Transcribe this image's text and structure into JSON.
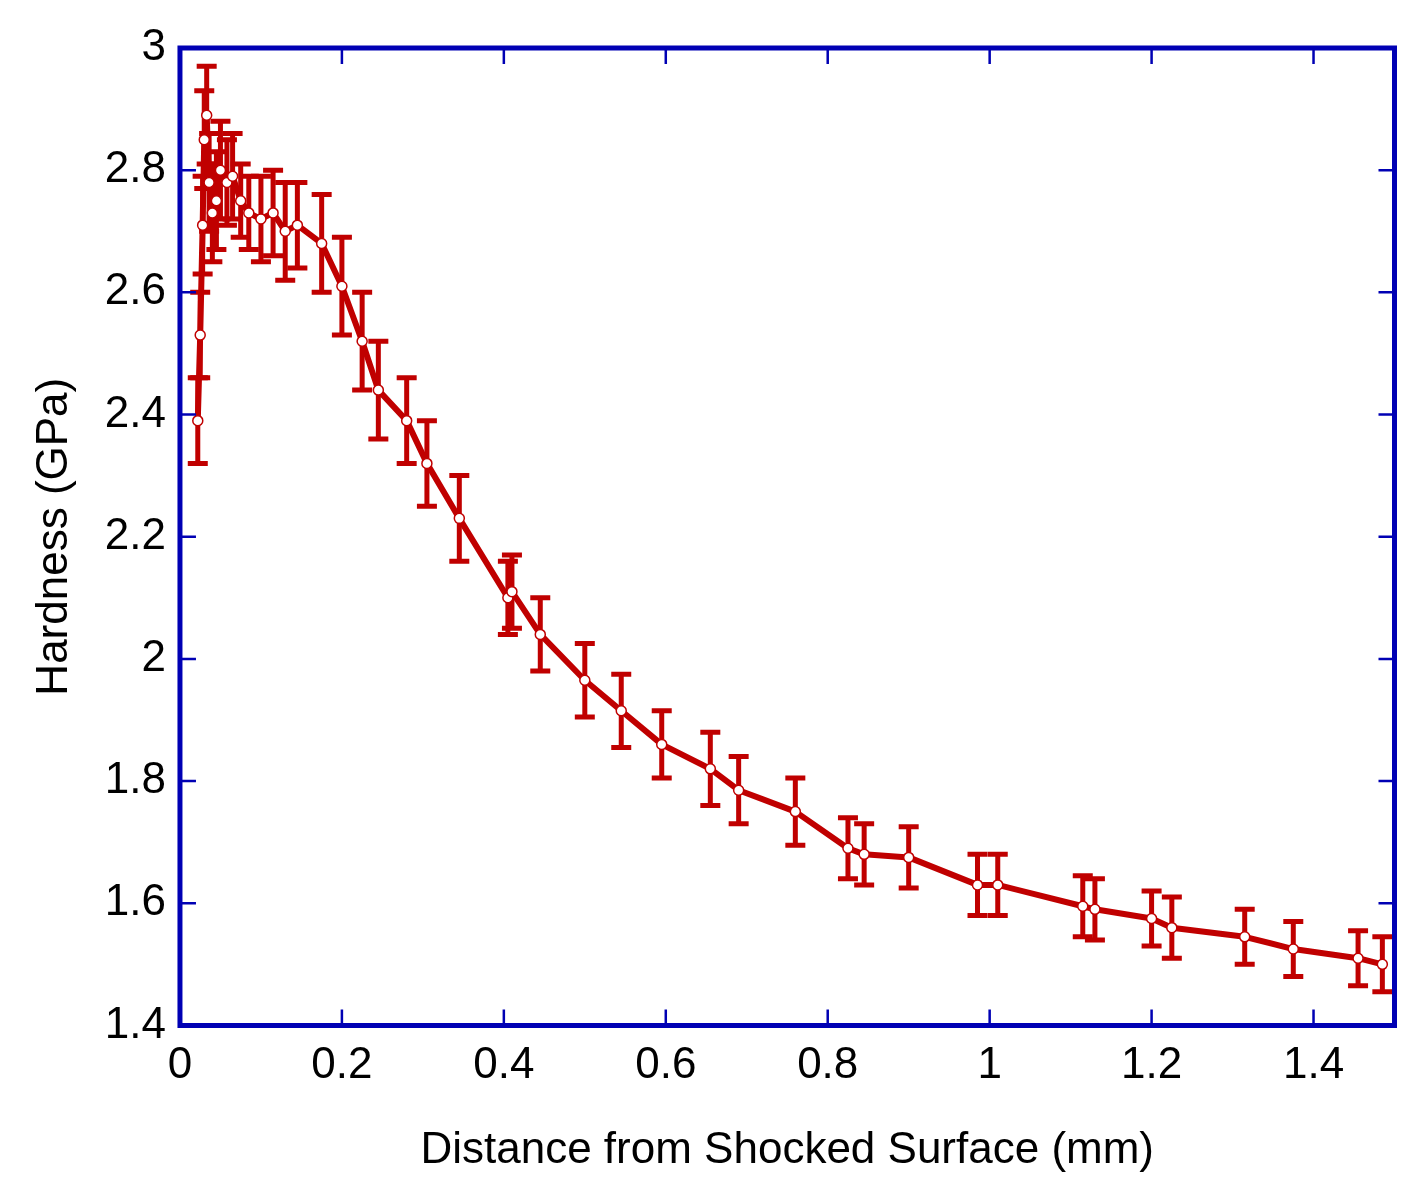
{
  "chart_data": {
    "type": "line",
    "xlabel": "Distance from Shocked Surface (mm)",
    "ylabel": "Hardness (GPa)",
    "xlim": [
      0,
      1.5
    ],
    "xticks": [
      0,
      0.2,
      0.4,
      0.6,
      0.8,
      1,
      1.2,
      1.4
    ],
    "ylim": [
      1.4,
      3
    ],
    "yticks": [
      1.4,
      1.6,
      1.8,
      2,
      2.2,
      2.4,
      2.6,
      2.8,
      3
    ],
    "grid": false,
    "legend": false,
    "marker": "circle",
    "line_style": "solid",
    "series": [
      {
        "color": "#c00000",
        "x": [
          0.022,
          0.025,
          0.028,
          0.03,
          0.033,
          0.036,
          0.04,
          0.045,
          0.05,
          0.058,
          0.065,
          0.075,
          0.085,
          0.1,
          0.115,
          0.13,
          0.145,
          0.175,
          0.2,
          0.225,
          0.245,
          0.28,
          0.305,
          0.345,
          0.405,
          0.41,
          0.445,
          0.5,
          0.545,
          0.595,
          0.655,
          0.69,
          0.76,
          0.825,
          0.845,
          0.9,
          0.985,
          1.01,
          1.115,
          1.13,
          1.2,
          1.225,
          1.315,
          1.375,
          1.455,
          1.485
        ],
        "values": [
          2.39,
          2.53,
          2.71,
          2.85,
          2.89,
          2.78,
          2.73,
          2.75,
          2.8,
          2.78,
          2.79,
          2.75,
          2.73,
          2.72,
          2.73,
          2.7,
          2.71,
          2.68,
          2.61,
          2.52,
          2.44,
          2.39,
          2.32,
          2.23,
          2.1,
          2.11,
          2.04,
          1.965,
          1.915,
          1.86,
          1.82,
          1.785,
          1.75,
          1.69,
          1.68,
          1.675,
          1.63,
          1.63,
          1.595,
          1.59,
          1.575,
          1.56,
          1.545,
          1.525,
          1.51,
          1.5
        ],
        "errors": [
          0.07,
          0.07,
          0.08,
          0.08,
          0.08,
          0.08,
          0.08,
          0.08,
          0.08,
          0.07,
          0.07,
          0.06,
          0.06,
          0.07,
          0.07,
          0.08,
          0.07,
          0.08,
          0.08,
          0.08,
          0.08,
          0.07,
          0.07,
          0.07,
          0.06,
          0.06,
          0.06,
          0.06,
          0.06,
          0.055,
          0.06,
          0.055,
          0.055,
          0.05,
          0.05,
          0.05,
          0.05,
          0.05,
          0.05,
          0.05,
          0.045,
          0.05,
          0.045,
          0.045,
          0.045,
          0.045
        ]
      }
    ]
  }
}
